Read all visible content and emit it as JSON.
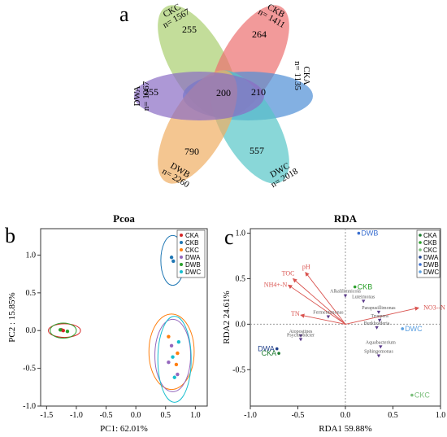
{
  "panel_labels": {
    "a": "a",
    "b": "b",
    "c": "c"
  },
  "chart_data": [
    {
      "type": "venn",
      "panel": "a",
      "sets": [
        {
          "name": "CKC",
          "n": "n= 1567",
          "unique": "255",
          "color": "#a9cf6f"
        },
        {
          "name": "CKB",
          "n": "n= 1411",
          "unique": "264",
          "color": "#ec6f6f"
        },
        {
          "name": "CKA",
          "n": "n= 1135",
          "unique": "210",
          "color": "#4f8fd6"
        },
        {
          "name": "DWC",
          "n": "n= 2018",
          "unique": "557",
          "color": "#57c6c8"
        },
        {
          "name": "DWB",
          "n": "n= 2260",
          "unique": "790",
          "color": "#efae62"
        },
        {
          "name": "DWA",
          "n": "n= 1067",
          "unique": "255",
          "color": "#8a6cc4"
        }
      ],
      "core": "200"
    },
    {
      "type": "scatter",
      "panel": "b",
      "title": "Pcoa",
      "xlabel": "PC1: 62.01%",
      "ylabel": "PC2 : 15.85%",
      "xlim": [
        -1.6,
        1.2
      ],
      "ylim": [
        -1.0,
        1.35
      ],
      "xticks": [
        "-1.5",
        "-1.0",
        "-0.5",
        "0.0",
        "0.5",
        "1.0"
      ],
      "yticks": [
        "-1.0",
        "-0.5",
        "0.0",
        "0.5",
        "1.0"
      ],
      "legend_position": "top-right",
      "series": [
        {
          "name": "CKA",
          "color": "#d62728",
          "points": [
            [
              -1.22,
              0.0
            ],
            [
              -1.25,
              0.01
            ]
          ],
          "ellipse": {
            "cx": -1.2,
            "cy": 0.0,
            "rx": 0.27,
            "ry": 0.09,
            "rot": 0
          }
        },
        {
          "name": "CKB",
          "color": "#1f77b4",
          "points": [
            [
              0.6,
              0.97
            ],
            [
              0.63,
              0.92
            ]
          ],
          "ellipse": {
            "cx": 0.62,
            "cy": 0.93,
            "rx": 0.2,
            "ry": 0.33,
            "rot": 0
          }
        },
        {
          "name": "CKC",
          "color": "#ff7f0e",
          "points": [
            [
              0.55,
              -0.08
            ],
            [
              0.7,
              -0.3
            ],
            [
              0.68,
              -0.45
            ]
          ],
          "ellipse": {
            "cx": 0.6,
            "cy": -0.28,
            "rx": 0.38,
            "ry": 0.5,
            "rot": 0
          }
        },
        {
          "name": "DWA",
          "color": "#9467bd",
          "points": [
            [
              0.6,
              -0.2
            ],
            [
              0.55,
              -0.42
            ],
            [
              0.7,
              -0.58
            ]
          ],
          "ellipse": {
            "cx": 0.62,
            "cy": -0.33,
            "rx": 0.3,
            "ry": 0.48,
            "rot": 0
          }
        },
        {
          "name": "DWB",
          "color": "#2ca02c",
          "points": [
            [
              -1.27,
              0.01
            ],
            [
              -1.15,
              -0.01
            ]
          ],
          "ellipse": {
            "cx": -1.22,
            "cy": 0.0,
            "rx": 0.22,
            "ry": 0.1,
            "rot": 0
          }
        },
        {
          "name": "DWC",
          "color": "#17becf",
          "points": [
            [
              0.62,
              -0.35
            ],
            [
              0.65,
              -0.62
            ],
            [
              0.72,
              -0.15
            ]
          ],
          "ellipse": {
            "cx": 0.65,
            "cy": -0.38,
            "rx": 0.28,
            "ry": 0.57,
            "rot": 0
          }
        }
      ]
    },
    {
      "type": "scatter",
      "panel": "c",
      "title": "RDA",
      "xlabel": "RDA1  59.88%",
      "ylabel": "RDA2  24.61%",
      "xlim": [
        -1.0,
        1.0
      ],
      "ylim": [
        -0.9,
        1.05
      ],
      "xticks": [
        "-1.0",
        "-0.5",
        "0.0",
        "0.5",
        "1.0"
      ],
      "yticks": [
        "-0.5",
        "0.0",
        "0.5",
        "1.0"
      ],
      "legend_position": "top-right",
      "legend": [
        {
          "name": "CKA",
          "color": "#1b7a2e"
        },
        {
          "name": "CKB",
          "color": "#2ca02c"
        },
        {
          "name": "CKC",
          "color": "#7bbf7b"
        },
        {
          "name": "DWA",
          "color": "#1f3f8a"
        },
        {
          "name": "DWB",
          "color": "#3a6fd0"
        },
        {
          "name": "DWC",
          "color": "#5a9fe0"
        }
      ],
      "env_vectors": [
        {
          "name": "TOC",
          "x": -0.55,
          "y": 0.5
        },
        {
          "name": "pH",
          "x": -0.42,
          "y": 0.57
        },
        {
          "name": "NH4+-N",
          "x": -0.6,
          "y": 0.43
        },
        {
          "name": "TN",
          "x": -0.47,
          "y": 0.1
        },
        {
          "name": "NO3--N",
          "x": 0.77,
          "y": 0.18
        }
      ],
      "species": [
        {
          "name": "Alkalilimnicola",
          "x": 0.0,
          "y": 0.31
        },
        {
          "name": "Luteimonas",
          "x": 0.19,
          "y": 0.25
        },
        {
          "name": "Fermentimonas",
          "x": -0.18,
          "y": 0.08
        },
        {
          "name": "Parapusillimonas",
          "x": 0.35,
          "y": 0.13
        },
        {
          "name": "Truepera",
          "x": 0.36,
          "y": 0.04
        },
        {
          "name": "Burkholderia",
          "x": 0.33,
          "y": -0.04
        },
        {
          "name": "Atopostipes",
          "x": -0.47,
          "y": -0.13
        },
        {
          "name": "Psychrobacter",
          "x": -0.47,
          "y": -0.17
        },
        {
          "name": "Aquabacterium",
          "x": 0.37,
          "y": -0.25
        },
        {
          "name": "Sphingomonas",
          "x": 0.35,
          "y": -0.35
        }
      ],
      "samples": [
        {
          "name": "DWB",
          "x": 0.14,
          "y": 1.0,
          "color": "#3a6fd0"
        },
        {
          "name": "CKB",
          "x": 0.1,
          "y": 0.41,
          "color": "#2ca02c"
        },
        {
          "name": "DWC",
          "x": 0.6,
          "y": -0.05,
          "color": "#5a9fe0"
        },
        {
          "name": "DWA",
          "x": -0.72,
          "y": -0.27,
          "color": "#1f3f8a"
        },
        {
          "name": "CKA",
          "x": -0.7,
          "y": -0.32,
          "color": "#1b7a2e"
        },
        {
          "name": "CKC",
          "x": 0.7,
          "y": -0.78,
          "color": "#7bbf7b"
        }
      ]
    }
  ]
}
